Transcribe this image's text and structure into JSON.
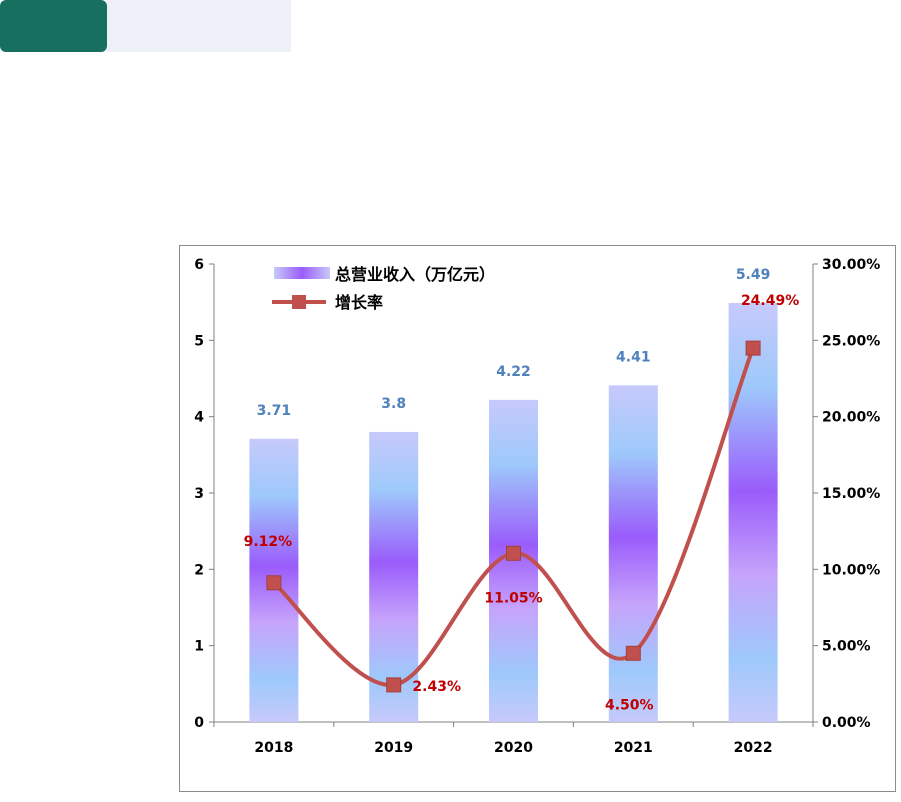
{
  "chart_data": {
    "type": "bar",
    "categories": [
      "2018",
      "2019",
      "2020",
      "2021",
      "2022"
    ],
    "series": [
      {
        "name": "总营业收入（万亿元）",
        "type": "bar",
        "axis": "left",
        "values": [
          3.71,
          3.8,
          4.22,
          4.41,
          5.49
        ],
        "labels": [
          "3.71",
          "3.8",
          "4.22",
          "4.41",
          "5.49"
        ]
      },
      {
        "name": "增长率",
        "type": "line",
        "axis": "right",
        "values": [
          9.12,
          2.43,
          11.05,
          4.5,
          24.49
        ],
        "labels": [
          "9.12%",
          "2.43%",
          "11.05%",
          "4.50%",
          "24.49%"
        ]
      }
    ],
    "ylim": [
      0,
      6
    ],
    "yticks": [
      "0",
      "1",
      "2",
      "3",
      "4",
      "5",
      "6"
    ],
    "y2lim": [
      0,
      30
    ],
    "y2ticks": [
      "0.00%",
      "5.00%",
      "10.00%",
      "15.00%",
      "20.00%",
      "25.00%",
      "30.00%"
    ],
    "legend_position": "top-left",
    "grid": false,
    "colors": {
      "line": "#c0504d",
      "bar_label": "#4f81bd",
      "rate_label": "#c00000",
      "bar_light": "#c7c9fb",
      "bar_mid": "#9ec9fb",
      "bar_dark": "#9a5cfb"
    }
  }
}
